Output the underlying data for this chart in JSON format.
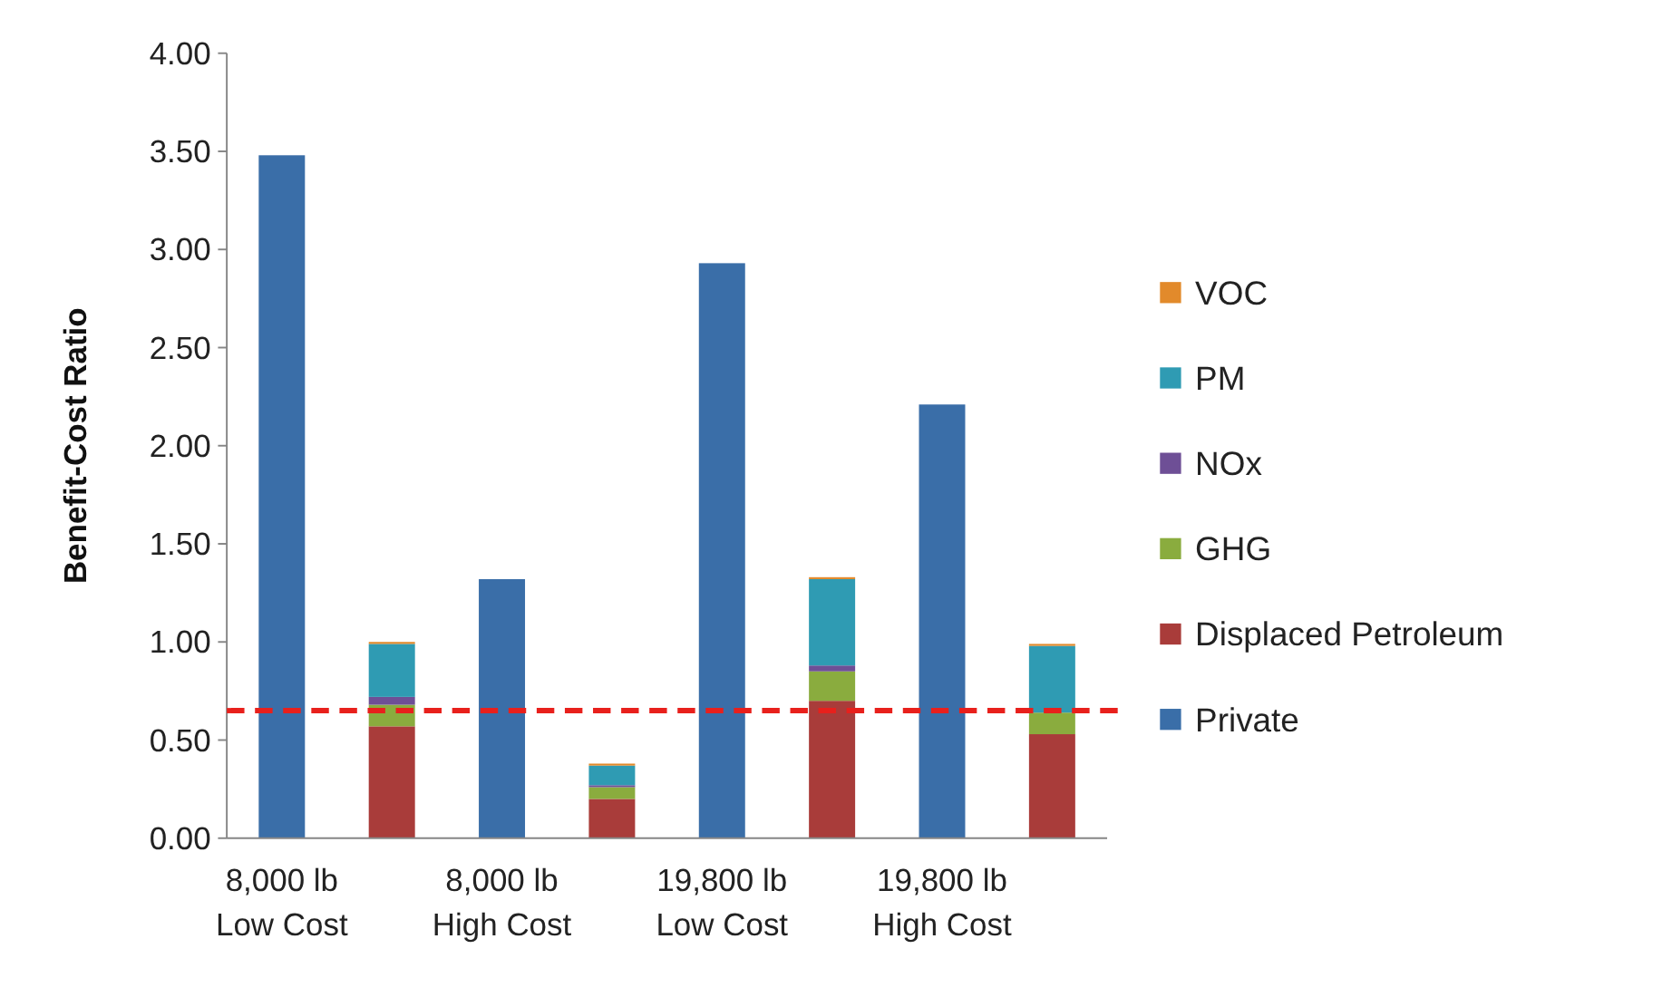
{
  "chart_data": {
    "type": "bar",
    "stacked": true,
    "ylabel": "Benefit-Cost Ratio",
    "categories": [
      "8,000 lb\nLow Cost",
      null,
      "8,000 lb\nHigh Cost",
      null,
      "19,800 lb\nLow Cost",
      null,
      "19,800 lb\nHigh Cost",
      null
    ],
    "ylim": [
      0,
      4
    ],
    "yticks": [
      {
        "value": 0,
        "label": "0.00"
      },
      {
        "value": 0.5,
        "label": "0.50"
      },
      {
        "value": 1,
        "label": "1.00"
      },
      {
        "value": 1.5,
        "label": "1.50"
      },
      {
        "value": 2,
        "label": "2.00"
      },
      {
        "value": 2.5,
        "label": "2.50"
      },
      {
        "value": 3,
        "label": "3.00"
      },
      {
        "value": 3.5,
        "label": "3.50"
      },
      {
        "value": 4,
        "label": "4.00"
      }
    ],
    "grid": false,
    "legend": "right",
    "series": [
      {
        "name": "Private",
        "color": "#3a6ea8",
        "values": [
          3.48,
          null,
          1.32,
          null,
          2.93,
          null,
          2.21,
          null
        ]
      },
      {
        "name": "Displaced Petroleum",
        "color": "#a93c3a",
        "values": [
          null,
          0.57,
          null,
          0.2,
          null,
          0.7,
          null,
          0.53
        ]
      },
      {
        "name": "GHG",
        "color": "#8aac3e",
        "values": [
          null,
          0.11,
          null,
          0.06,
          null,
          0.15,
          null,
          0.11
        ]
      },
      {
        "name": "NOx",
        "color": "#6e4f96",
        "values": [
          null,
          0.04,
          null,
          0.01,
          null,
          0.03,
          null,
          null
        ]
      },
      {
        "name": "PM",
        "color": "#2f9bb3",
        "values": [
          null,
          0.27,
          null,
          0.1,
          null,
          0.44,
          null,
          0.34
        ]
      },
      {
        "name": "VOC",
        "color": "#e28a2b",
        "values": [
          null,
          0.01,
          null,
          0.01,
          null,
          0.01,
          null,
          0.01
        ]
      }
    ],
    "ref_lines": [
      {
        "axis": "y",
        "value": 0.65,
        "label": null,
        "color": "#e8201c",
        "line_style": "dashed"
      }
    ]
  }
}
